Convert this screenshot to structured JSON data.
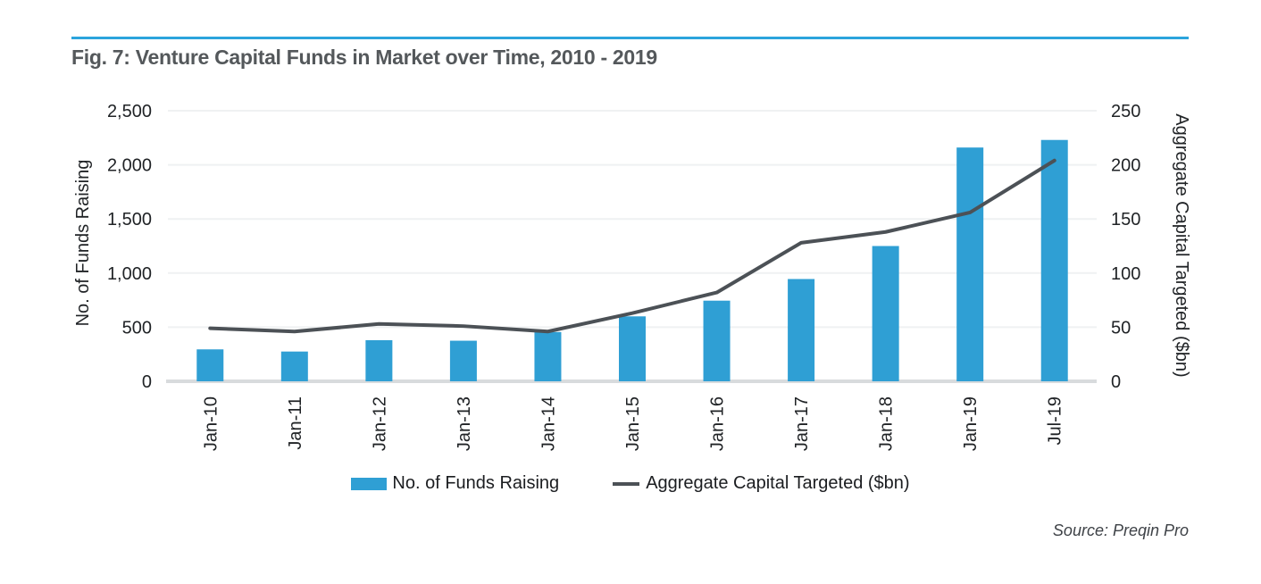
{
  "figure": {
    "title": "Fig. 7: Venture Capital Funds in Market over Time, 2010 - 2019",
    "source": "Source: Preqin Pro",
    "accent_color": "#2BA4DC",
    "title_color": "#54585B"
  },
  "chart_data": {
    "type": "bar+line",
    "title": "Fig. 7: Venture Capital Funds in Market over Time, 2010 - 2019",
    "categories": [
      "Jan-10",
      "Jan-11",
      "Jan-12",
      "Jan-13",
      "Jan-14",
      "Jan-15",
      "Jan-16",
      "Jan-17",
      "Jan-18",
      "Jan-19",
      "Jul-19"
    ],
    "series": [
      {
        "name": "No. of Funds Raising",
        "type": "bar",
        "axis": "left",
        "color": "#2F9FD4",
        "values": [
          295,
          275,
          380,
          375,
          455,
          600,
          745,
          945,
          1250,
          2160,
          2230
        ]
      },
      {
        "name": "Aggregate Capital Targeted ($bn)",
        "type": "line",
        "axis": "right",
        "color": "#4C5156",
        "values": [
          49,
          46,
          53,
          51,
          46,
          63,
          82,
          128,
          138,
          156,
          204
        ]
      }
    ],
    "left_axis": {
      "label": "No. of Funds Raising",
      "min": 0,
      "max": 2500,
      "tick_step": 500,
      "tick_labels": [
        "0",
        "500",
        "1,000",
        "1,500",
        "2,000",
        "2,500"
      ]
    },
    "right_axis": {
      "label": "Aggregate Capital Targeted ($bn)",
      "min": 0,
      "max": 250,
      "tick_step": 50,
      "tick_labels": [
        "0",
        "50",
        "100",
        "150",
        "200",
        "250"
      ]
    },
    "legend": {
      "position": "bottom",
      "items": [
        "No. of Funds Raising",
        "Aggregate Capital Targeted ($bn)"
      ]
    },
    "grid": {
      "horizontal": true,
      "color": "#EFF1F2",
      "baseline_color": "#D8DBDD"
    },
    "source": "Source: Preqin Pro"
  }
}
